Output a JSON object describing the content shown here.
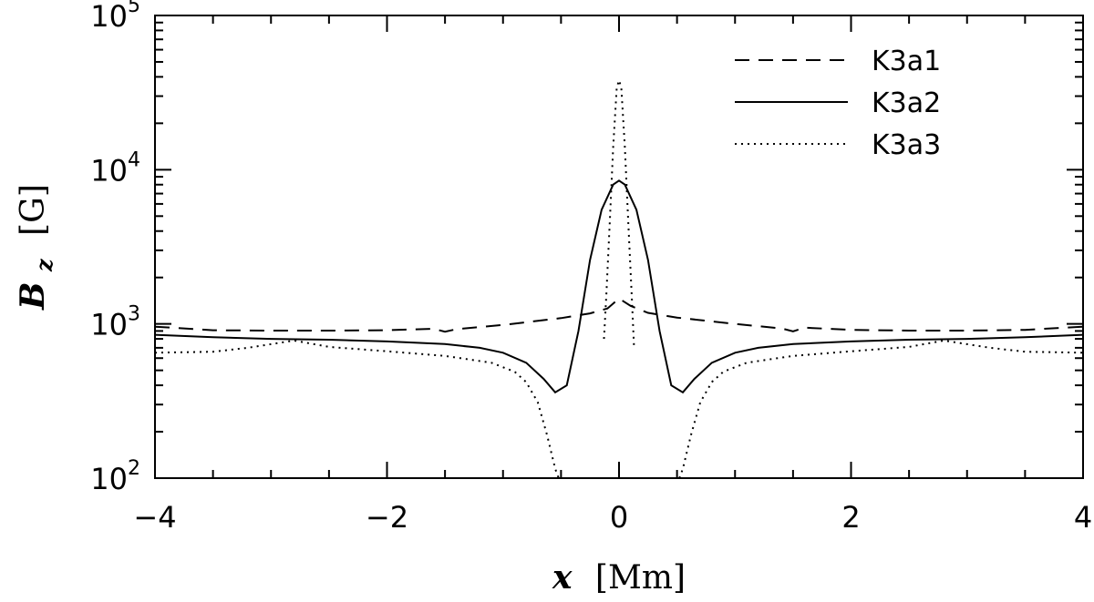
{
  "chart_data": {
    "type": "line",
    "x_scale": "linear",
    "y_scale": "log",
    "xlim": [
      -4,
      4
    ],
    "ylim": [
      100,
      100000
    ],
    "x_major_ticks": [
      -4,
      -2,
      0,
      2,
      4
    ],
    "x_tick_labels": [
      "−4",
      "−2",
      "0",
      "2",
      "4"
    ],
    "y_major_ticks": [
      100,
      1000,
      10000,
      100000
    ],
    "y_tick_labels": [
      {
        "base": "10",
        "exp": "2"
      },
      {
        "base": "10",
        "exp": "3"
      },
      {
        "base": "10",
        "exp": "4"
      },
      {
        "base": "10",
        "exp": "5"
      }
    ],
    "xlabel": {
      "var": "x",
      "unit": "[Mm]"
    },
    "ylabel": {
      "var": "B",
      "sub": "z",
      "unit": "[G]"
    },
    "grid": false,
    "legend_position": "top-right",
    "series": [
      {
        "name": "K3a1",
        "line_style": "dashed",
        "color": "#000000",
        "points": [
          [
            -4,
            960
          ],
          [
            -3.5,
            910
          ],
          [
            -3.0,
            905
          ],
          [
            -2.5,
            905
          ],
          [
            -2.0,
            910
          ],
          [
            -1.6,
            930
          ],
          [
            -1.5,
            890
          ],
          [
            -1.4,
            925
          ],
          [
            -1.0,
            985
          ],
          [
            -0.5,
            1090
          ],
          [
            -0.25,
            1170
          ],
          [
            -0.1,
            1260
          ],
          [
            0.0,
            1460
          ],
          [
            0.1,
            1310
          ],
          [
            0.25,
            1180
          ],
          [
            0.5,
            1100
          ],
          [
            1.0,
            1000
          ],
          [
            1.4,
            935
          ],
          [
            1.5,
            895
          ],
          [
            1.6,
            945
          ],
          [
            2.0,
            915
          ],
          [
            2.5,
            905
          ],
          [
            3.0,
            905
          ],
          [
            3.5,
            915
          ],
          [
            4.0,
            960
          ]
        ]
      },
      {
        "name": "K3a2",
        "line_style": "solid",
        "color": "#000000",
        "points": [
          [
            -4,
            850
          ],
          [
            -3.5,
            820
          ],
          [
            -3.0,
            800
          ],
          [
            -2.5,
            790
          ],
          [
            -2.0,
            770
          ],
          [
            -1.5,
            740
          ],
          [
            -1.2,
            700
          ],
          [
            -1.0,
            650
          ],
          [
            -0.8,
            560
          ],
          [
            -0.65,
            440
          ],
          [
            -0.55,
            360
          ],
          [
            -0.45,
            400
          ],
          [
            -0.35,
            900
          ],
          [
            -0.25,
            2600
          ],
          [
            -0.15,
            5500
          ],
          [
            -0.05,
            8000
          ],
          [
            0.0,
            8500
          ],
          [
            0.05,
            8000
          ],
          [
            0.15,
            5500
          ],
          [
            0.25,
            2600
          ],
          [
            0.35,
            900
          ],
          [
            0.45,
            400
          ],
          [
            0.55,
            360
          ],
          [
            0.65,
            440
          ],
          [
            0.8,
            560
          ],
          [
            1.0,
            650
          ],
          [
            1.2,
            700
          ],
          [
            1.5,
            740
          ],
          [
            2.0,
            770
          ],
          [
            2.5,
            790
          ],
          [
            3.0,
            800
          ],
          [
            3.5,
            820
          ],
          [
            4.0,
            850
          ]
        ]
      },
      {
        "name": "K3a3",
        "line_style": "dotted",
        "color": "#000000",
        "segments": [
          [
            [
              -4,
              650
            ],
            [
              -3.5,
              660
            ],
            [
              -3.2,
              700
            ],
            [
              -2.8,
              780
            ],
            [
              -2.5,
              710
            ],
            [
              -2.0,
              665
            ],
            [
              -1.5,
              620
            ],
            [
              -1.1,
              560
            ],
            [
              -0.9,
              490
            ],
            [
              -0.8,
              420
            ],
            [
              -0.7,
              310
            ],
            [
              -0.62,
              190
            ],
            [
              -0.55,
              115
            ],
            [
              -0.52,
              100
            ]
          ],
          [
            [
              -0.13,
              800
            ],
            [
              -0.11,
              1500
            ],
            [
              -0.08,
              4500
            ],
            [
              -0.05,
              14000
            ],
            [
              -0.02,
              34000
            ],
            [
              0.0,
              38000
            ],
            [
              0.02,
              34000
            ],
            [
              0.05,
              14000
            ],
            [
              0.08,
              4500
            ],
            [
              0.11,
              1500
            ],
            [
              0.13,
              700
            ]
          ],
          [
            [
              0.52,
              100
            ],
            [
              0.55,
              115
            ],
            [
              0.62,
              190
            ],
            [
              0.7,
              310
            ],
            [
              0.8,
              420
            ],
            [
              0.9,
              490
            ],
            [
              1.1,
              560
            ],
            [
              1.5,
              620
            ],
            [
              2.0,
              665
            ],
            [
              2.5,
              710
            ],
            [
              2.8,
              780
            ],
            [
              3.2,
              700
            ],
            [
              3.5,
              660
            ],
            [
              4.0,
              650
            ]
          ]
        ]
      }
    ]
  }
}
